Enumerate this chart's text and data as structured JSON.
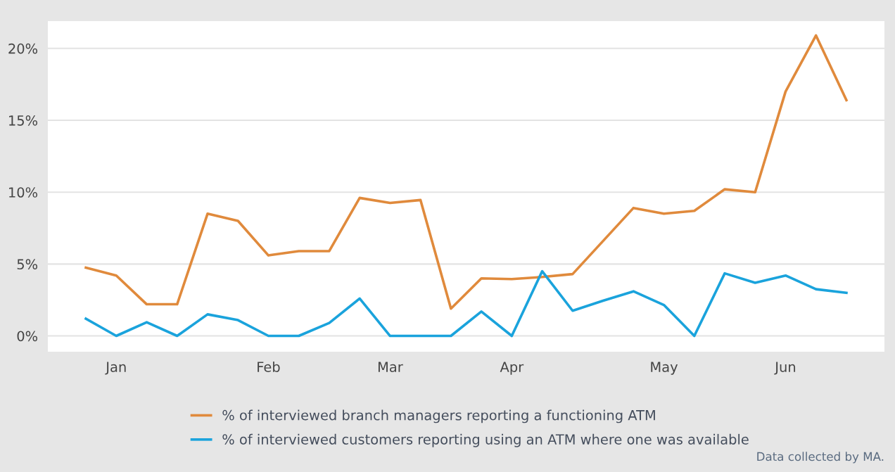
{
  "chart_data": {
    "type": "line",
    "categories": [
      null,
      "Jan",
      null,
      null,
      null,
      null,
      "Feb",
      null,
      null,
      null,
      "Mar",
      null,
      null,
      null,
      "Apr",
      null,
      null,
      null,
      null,
      "May",
      null,
      null,
      null,
      "Jun",
      null,
      null
    ],
    "series": [
      {
        "name": "% of interviewed branch managers reporting a functioning ATM",
        "color": "#e08a3c",
        "values": [
          4.75,
          4.2,
          2.2,
          2.2,
          8.5,
          8.0,
          5.6,
          5.9,
          5.9,
          9.6,
          9.25,
          9.45,
          1.9,
          4.0,
          3.95,
          4.1,
          4.3,
          6.6,
          8.9,
          8.5,
          8.7,
          10.2,
          10.0,
          17.0,
          20.9,
          16.4
        ]
      },
      {
        "name": "% of interviewed customers reporting using an ATM where one was available",
        "color": "#1aa3dc",
        "values": [
          1.2,
          0,
          0.95,
          0,
          1.5,
          1.1,
          0,
          0,
          0.9,
          2.6,
          0,
          0,
          0,
          1.7,
          0,
          4.5,
          1.75,
          2.45,
          3.1,
          2.15,
          0,
          4.35,
          3.7,
          4.2,
          3.25,
          3.0
        ]
      }
    ],
    "ylim": [
      -1.1,
      21.9
    ],
    "yticks": [
      {
        "value": 0,
        "label": "0%"
      },
      {
        "value": 5,
        "label": "5%"
      },
      {
        "value": 10,
        "label": "10%"
      },
      {
        "value": 15,
        "label": "15%"
      },
      {
        "value": 20,
        "label": "20%"
      }
    ],
    "grid": "y",
    "legend": "bottom",
    "marker": "none",
    "line_style": "solid",
    "annotations": [
      "Data collected by MA."
    ]
  }
}
